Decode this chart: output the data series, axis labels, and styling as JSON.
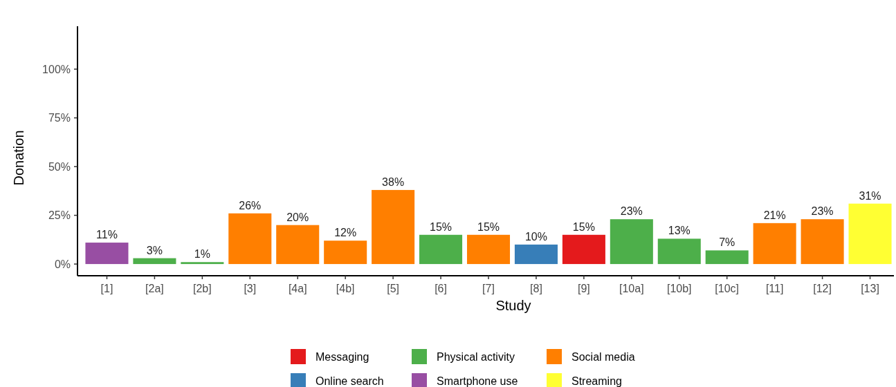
{
  "chart_data": {
    "type": "bar",
    "xlabel": "Study",
    "ylabel": "Donation",
    "stacked": true,
    "legend": "bottom",
    "grid": false,
    "categories": [
      "[1]",
      "[2a]",
      "[2b]",
      "[3]",
      "[4a]",
      "[4b]",
      "[5]",
      "[6]",
      "[7]",
      "[8]",
      "[9]",
      "[10a]",
      "[10b]",
      "[10c]",
      "[11]",
      "[12]",
      "[13]"
    ],
    "ylim": [
      -6,
      122
    ],
    "yticks": [
      {
        "value": 0,
        "label": "0%"
      },
      {
        "value": 25,
        "label": "25%"
      },
      {
        "value": 50,
        "label": "50%"
      },
      {
        "value": 75,
        "label": "75%"
      },
      {
        "value": 100,
        "label": "100%"
      }
    ],
    "series": [
      {
        "name": "Messaging",
        "color": "#e41a1c",
        "values": [
          null,
          null,
          null,
          null,
          null,
          null,
          null,
          null,
          null,
          null,
          15,
          null,
          null,
          null,
          null,
          null,
          null
        ],
        "value_labels": [
          null,
          null,
          null,
          null,
          null,
          null,
          null,
          null,
          null,
          null,
          "15%",
          null,
          null,
          null,
          null,
          null,
          null
        ]
      },
      {
        "name": "Online search",
        "color": "#377eb8",
        "values": [
          null,
          null,
          null,
          null,
          null,
          null,
          null,
          null,
          null,
          10,
          null,
          null,
          null,
          null,
          null,
          null,
          null
        ],
        "value_labels": [
          null,
          null,
          null,
          null,
          null,
          null,
          null,
          null,
          null,
          "10%",
          null,
          null,
          null,
          null,
          null,
          null,
          null
        ]
      },
      {
        "name": "Physical activity",
        "color": "#4daf4a",
        "values": [
          null,
          3,
          1,
          null,
          null,
          null,
          null,
          15,
          null,
          null,
          null,
          23,
          13,
          7,
          null,
          null,
          null
        ],
        "value_labels": [
          null,
          "3%",
          "1%",
          null,
          null,
          null,
          null,
          "15%",
          null,
          null,
          null,
          "23%",
          "13%",
          "7%",
          null,
          null,
          null
        ]
      },
      {
        "name": "Smartphone use",
        "color": "#984ea3",
        "values": [
          11,
          null,
          null,
          null,
          null,
          null,
          null,
          null,
          null,
          null,
          null,
          null,
          null,
          null,
          null,
          null,
          null
        ],
        "value_labels": [
          "11%",
          null,
          null,
          null,
          null,
          null,
          null,
          null,
          null,
          null,
          null,
          null,
          null,
          null,
          null,
          null,
          null
        ]
      },
      {
        "name": "Social media",
        "color": "#ff7f00",
        "values": [
          null,
          null,
          null,
          26,
          20,
          12,
          38,
          null,
          15,
          null,
          null,
          null,
          null,
          null,
          21,
          23,
          null
        ],
        "value_labels": [
          null,
          null,
          null,
          "26%",
          "20%",
          "12%",
          "38%",
          null,
          "15%",
          null,
          null,
          null,
          null,
          null,
          "21%",
          "23%",
          null
        ]
      },
      {
        "name": "Streaming",
        "color": "#ffff33",
        "values": [
          null,
          null,
          null,
          null,
          null,
          null,
          null,
          null,
          null,
          null,
          null,
          null,
          null,
          null,
          null,
          null,
          31
        ],
        "value_labels": [
          null,
          null,
          null,
          null,
          null,
          null,
          null,
          null,
          null,
          null,
          null,
          null,
          null,
          null,
          null,
          null,
          "31%"
        ]
      }
    ]
  }
}
